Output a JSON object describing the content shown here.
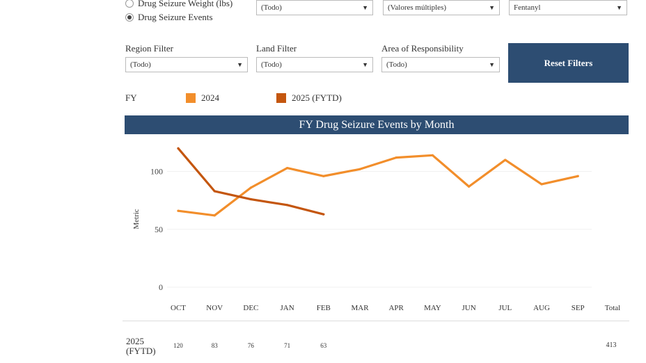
{
  "metric_options": [
    {
      "label": "Drug Seizure Weight (lbs)",
      "selected": false
    },
    {
      "label": "Drug Seizure Events",
      "selected": true
    }
  ],
  "filters_row1": [
    {
      "value": "(Todo)"
    },
    {
      "value": "(Valores múltiples)"
    },
    {
      "value": "Fentanyl"
    }
  ],
  "filters_row2": [
    {
      "label": "Region Filter",
      "value": "(Todo)"
    },
    {
      "label": "Land Filter",
      "value": "(Todo)"
    },
    {
      "label": "Area of Responsibility",
      "value": "(Todo)"
    }
  ],
  "reset_label": "Reset Filters",
  "legend": {
    "title": "FY",
    "items": [
      {
        "label": "2024",
        "color": "#f28e2b"
      },
      {
        "label": "2025 (FYTD)",
        "color": "#c4560f"
      }
    ]
  },
  "chart_data": {
    "type": "line",
    "title": "FY Drug Seizure Events by Month",
    "ylabel": "Metric",
    "categories": [
      "OCT",
      "NOV",
      "DEC",
      "JAN",
      "FEB",
      "MAR",
      "APR",
      "MAY",
      "JUN",
      "JUL",
      "AUG",
      "SEP"
    ],
    "total_label": "Total",
    "yticks": [
      0,
      50,
      100
    ],
    "ylim": [
      0,
      125
    ],
    "series": [
      {
        "name": "2024",
        "color": "#f28e2b",
        "values": [
          66,
          62,
          86,
          103,
          96,
          102,
          112,
          114,
          87,
          110,
          89,
          96
        ]
      },
      {
        "name": "2025 (FYTD)",
        "color": "#c4560f",
        "values": [
          120,
          83,
          76,
          71,
          63,
          null,
          null,
          null,
          null,
          null,
          null,
          null
        ]
      }
    ]
  },
  "table": {
    "row_label_line1": "2025",
    "row_label_line2": "(FYTD)",
    "values": [
      "120",
      "83",
      "76",
      "71",
      "63"
    ],
    "total": "413"
  }
}
